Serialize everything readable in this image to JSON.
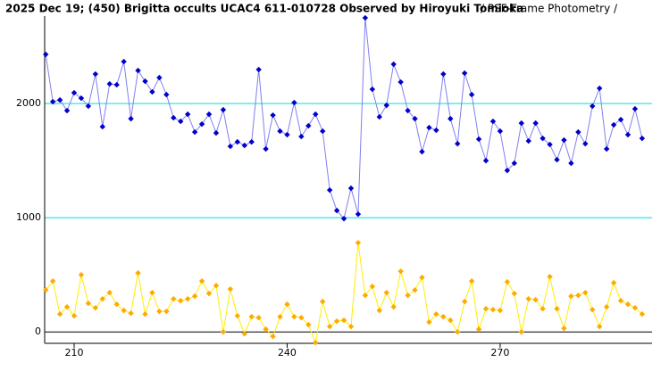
{
  "chart_data": {
    "type": "line",
    "title": "2025 Dec 19; (450) Brigitta occults UCAC4 611-010728 Observed by Hiroyuki Tomioka",
    "subtitle": "/ PSF-Frame Photometry /",
    "x": [
      206,
      207,
      208,
      209,
      210,
      211,
      212,
      213,
      214,
      215,
      216,
      217,
      218,
      219,
      220,
      221,
      222,
      223,
      224,
      225,
      226,
      227,
      228,
      229,
      230,
      231,
      232,
      233,
      234,
      235,
      236,
      237,
      238,
      239,
      240,
      241,
      242,
      243,
      244,
      245,
      246,
      247,
      248,
      249,
      250,
      251,
      252,
      253,
      254,
      255,
      256,
      257,
      258,
      259,
      260,
      261,
      262,
      263,
      264,
      265,
      266,
      267,
      268,
      269,
      270,
      271,
      272,
      273,
      274,
      275,
      276,
      277,
      278,
      279,
      280,
      281,
      282,
      283,
      284,
      285,
      286,
      287,
      288,
      289,
      290
    ],
    "series": [
      {
        "color": "#0000cc",
        "line_color": "#8080f0",
        "values": [
          2430,
          2016,
          2031,
          1938,
          2094,
          2047,
          1977,
          2258,
          1797,
          2172,
          2164,
          2367,
          1867,
          2289,
          2195,
          2102,
          2227,
          2078,
          1875,
          1844,
          1906,
          1750,
          1820,
          1906,
          1742,
          1945,
          1625,
          1664,
          1633,
          1664,
          2297,
          1602,
          1898,
          1758,
          1727,
          2008,
          1711,
          1805,
          1906,
          1758,
          1242,
          1063,
          992,
          1258,
          1031,
          2750,
          2125,
          1883,
          1984,
          2344,
          2188,
          1938,
          1867,
          1578,
          1789,
          1766,
          2258,
          1867,
          1648,
          2266,
          2078,
          1688,
          1500,
          1844,
          1758,
          1414,
          1477,
          1828,
          1672,
          1828,
          1695,
          1641,
          1508,
          1680,
          1477,
          1750,
          1648,
          1977,
          2133,
          1602,
          1813,
          1859,
          1727,
          1953,
          1695
        ]
      },
      {
        "color": "#ffaa00",
        "line_color": "#ffee00",
        "values": [
          367,
          445,
          156,
          219,
          141,
          500,
          250,
          211,
          289,
          344,
          242,
          188,
          164,
          516,
          156,
          344,
          180,
          180,
          289,
          273,
          289,
          313,
          445,
          336,
          406,
          0,
          375,
          141,
          -16,
          133,
          125,
          23,
          -39,
          133,
          242,
          133,
          125,
          63,
          -94,
          266,
          47,
          94,
          102,
          47,
          781,
          320,
          398,
          188,
          344,
          219,
          531,
          320,
          367,
          477,
          86,
          156,
          133,
          102,
          0,
          266,
          445,
          23,
          203,
          195,
          188,
          438,
          336,
          0,
          289,
          281,
          203,
          484,
          203,
          31,
          313,
          320,
          344,
          195,
          47,
          219,
          430,
          273,
          242,
          211,
          156
        ]
      }
    ],
    "xlim": [
      205.85,
      291.4
    ],
    "ylim": [
      -100,
      2766
    ],
    "xticks": [
      210,
      240,
      270
    ],
    "yticks": [
      0,
      1000,
      2000
    ],
    "grid": true,
    "grid_color": "#00dddd",
    "zero_line": true
  }
}
